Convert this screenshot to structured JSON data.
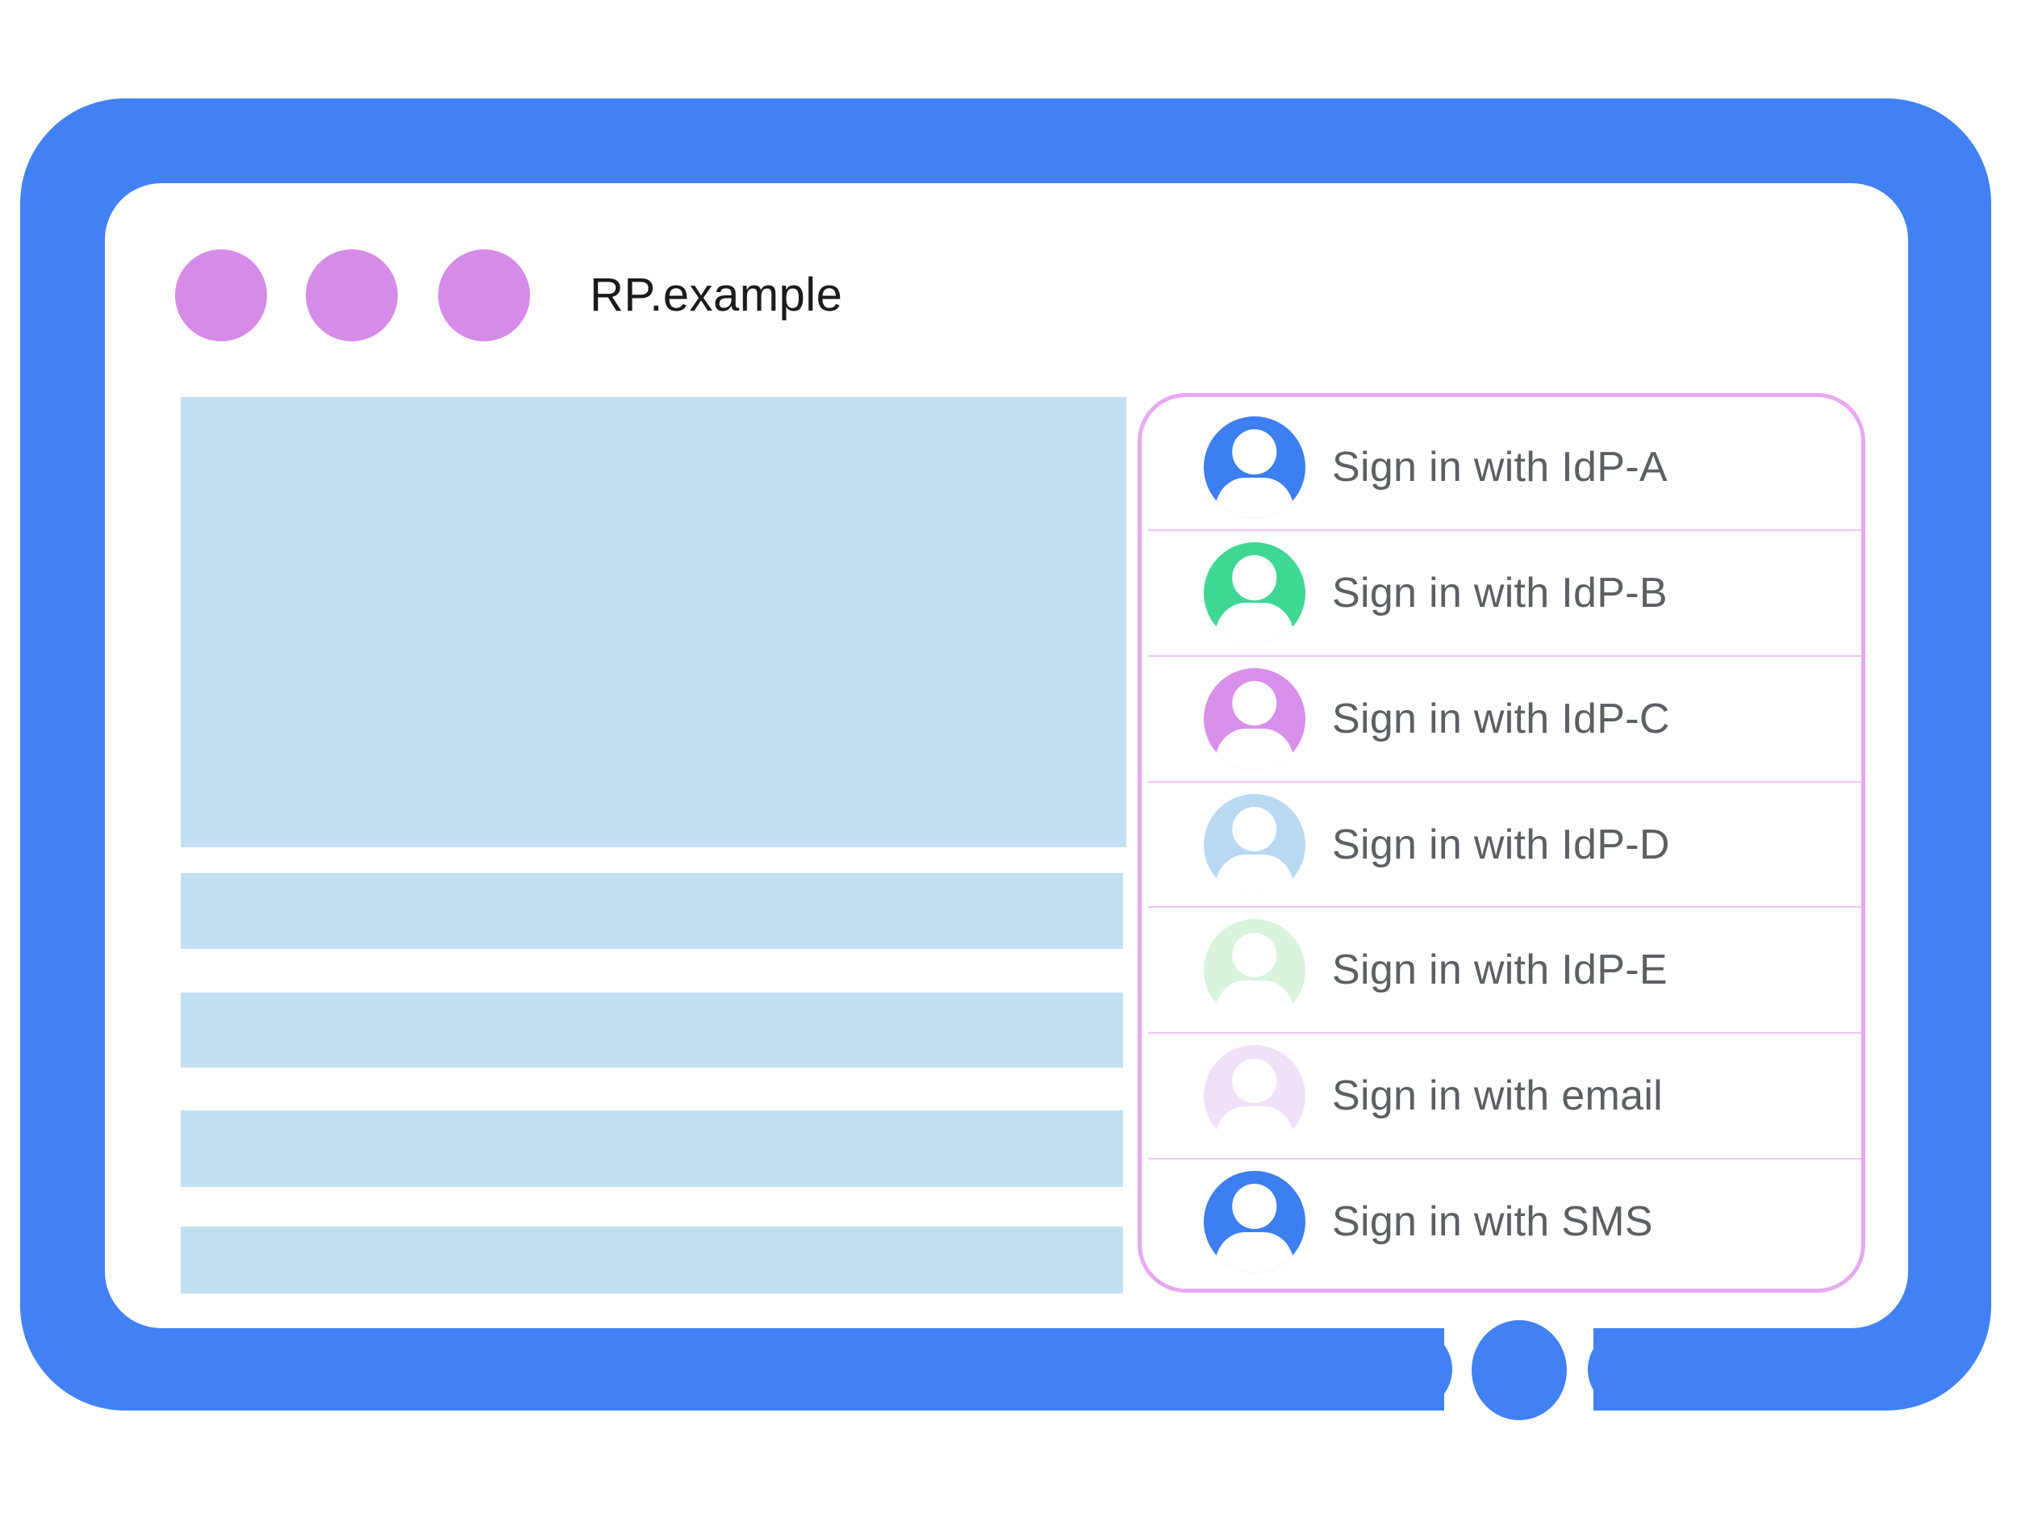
{
  "window": {
    "title": "RP.example"
  },
  "theme": {
    "frame_blue": "#4181f3",
    "window_dot_purple": "#d78be9",
    "placeholder_blue": "#c3e0f3",
    "dialog_border_pink": "#e7a9f1",
    "divider_pink": "#f0c3f6",
    "label_gray": "#5c5f63",
    "title_black": "#1b1b1b"
  },
  "signin_dialog": {
    "items": [
      {
        "label": "Sign in with IdP-A",
        "avatar_color": "#3d7ef0"
      },
      {
        "label": "Sign in with IdP-B",
        "avatar_color": "#3fd794"
      },
      {
        "label": "Sign in with IdP-C",
        "avatar_color": "#d890eb"
      },
      {
        "label": "Sign in with IdP-D",
        "avatar_color": "#b9d9f2"
      },
      {
        "label": "Sign in with IdP-E",
        "avatar_color": "#d9f3dd"
      },
      {
        "label": "Sign in with email",
        "avatar_color": "#efe2f8"
      },
      {
        "label": "Sign in with SMS",
        "avatar_color": "#3d7ef0"
      }
    ]
  }
}
